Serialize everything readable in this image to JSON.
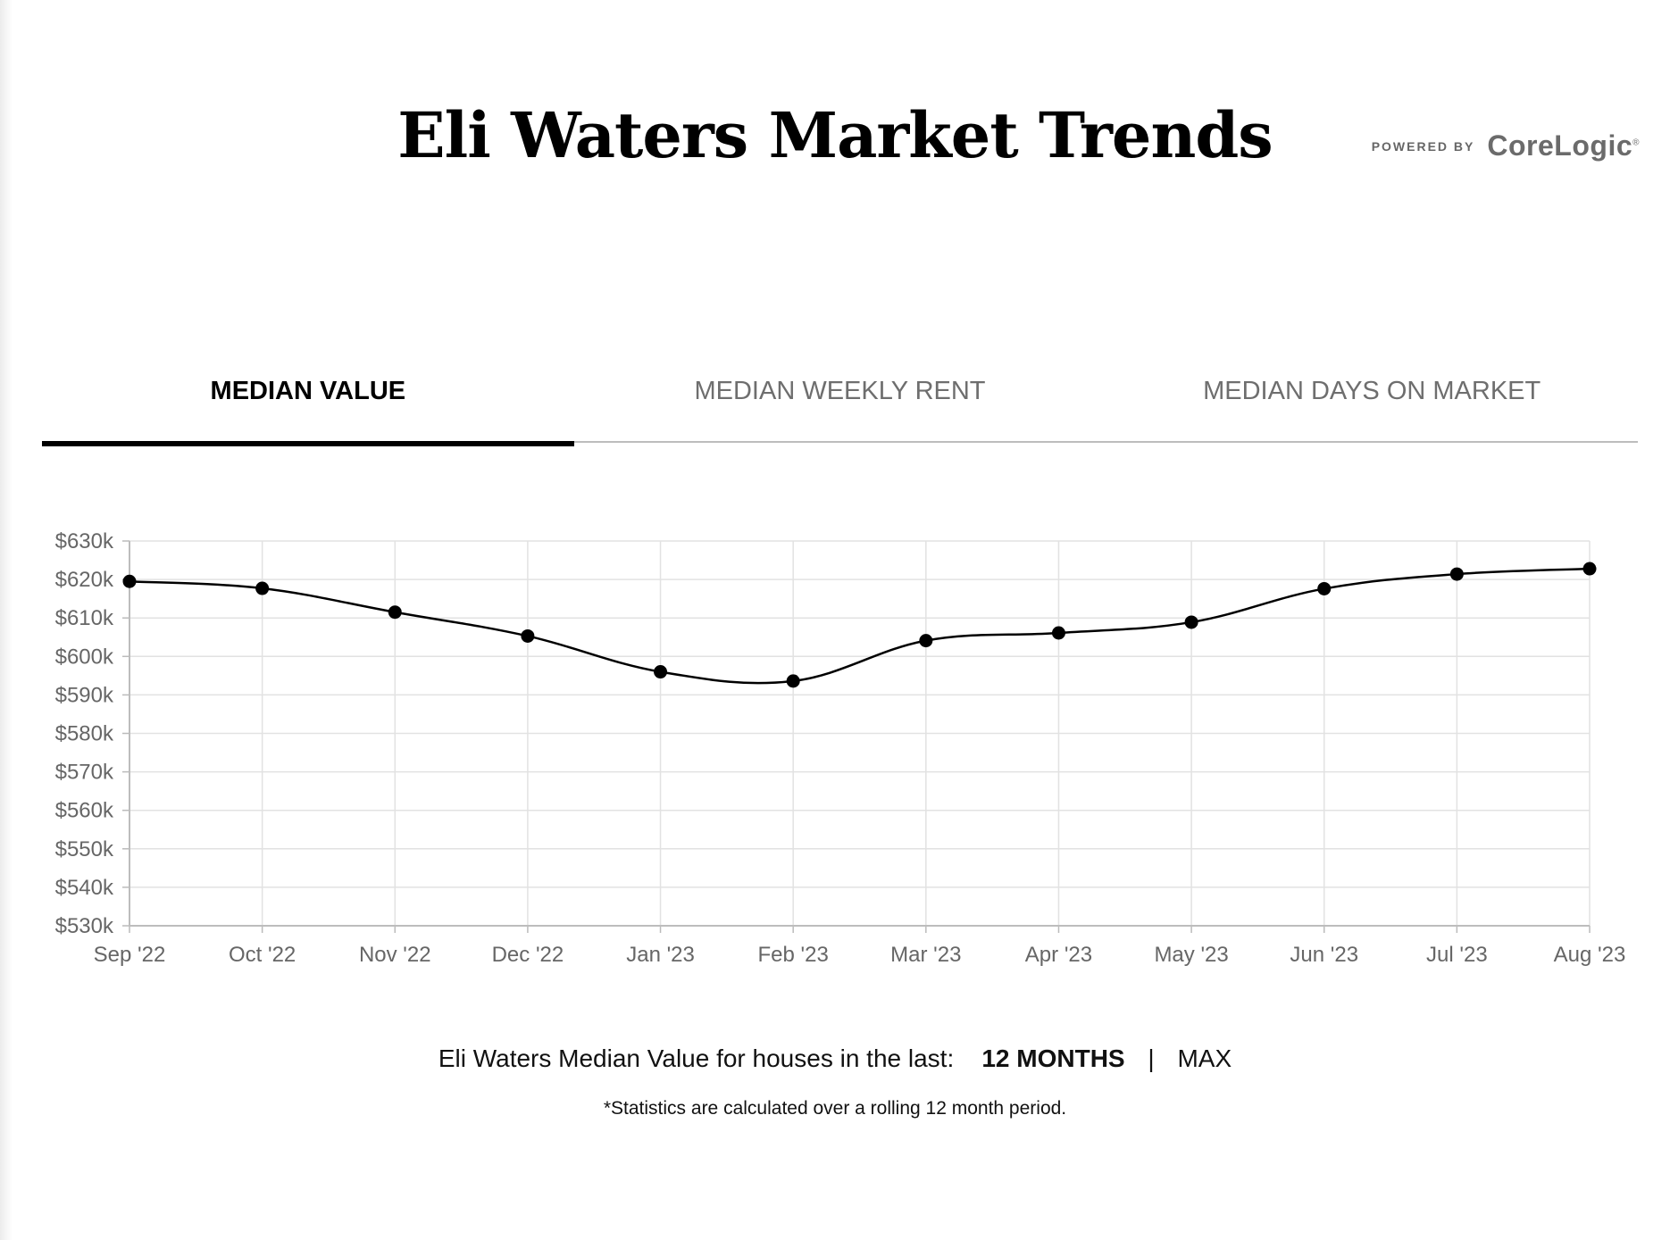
{
  "header": {
    "title": "Eli Waters Market Trends",
    "powered_by": "POWERED BY",
    "brand": "CoreLogic",
    "brand_mark": "®"
  },
  "tabs": [
    {
      "label": "MEDIAN VALUE",
      "active": true
    },
    {
      "label": "MEDIAN WEEKLY RENT",
      "active": false
    },
    {
      "label": "MEDIAN DAYS ON MARKET",
      "active": false
    }
  ],
  "footer": {
    "prefix": "Eli Waters Median Value for houses in the last:",
    "option_12": "12 MONTHS",
    "separator": "|",
    "option_max": "MAX",
    "note": "*Statistics are calculated over a rolling 12 month period."
  },
  "chart_data": {
    "type": "line",
    "title": "",
    "xlabel": "",
    "ylabel": "",
    "categories": [
      "Sep '22",
      "Oct '22",
      "Nov '22",
      "Dec '22",
      "Jan '23",
      "Feb '23",
      "Mar '23",
      "Apr '23",
      "May '23",
      "Jun '23",
      "Jul '23",
      "Aug '23"
    ],
    "series": [
      {
        "values": [
          619500,
          617700,
          611500,
          605300,
          596000,
          593600,
          604100,
          606100,
          608900,
          617600,
          621400,
          622800
        ]
      }
    ],
    "ylim": [
      530000,
      630000
    ],
    "yticks": [
      530000,
      540000,
      550000,
      560000,
      570000,
      580000,
      590000,
      600000,
      610000,
      620000,
      630000
    ],
    "ytick_labels": [
      "$530k",
      "$540k",
      "$550k",
      "$560k",
      "$570k",
      "$580k",
      "$590k",
      "$600k",
      "$610k",
      "$620k",
      "$630k"
    ],
    "grid": true,
    "line_color": "#000000",
    "grid_color": "#e2e2e2"
  }
}
